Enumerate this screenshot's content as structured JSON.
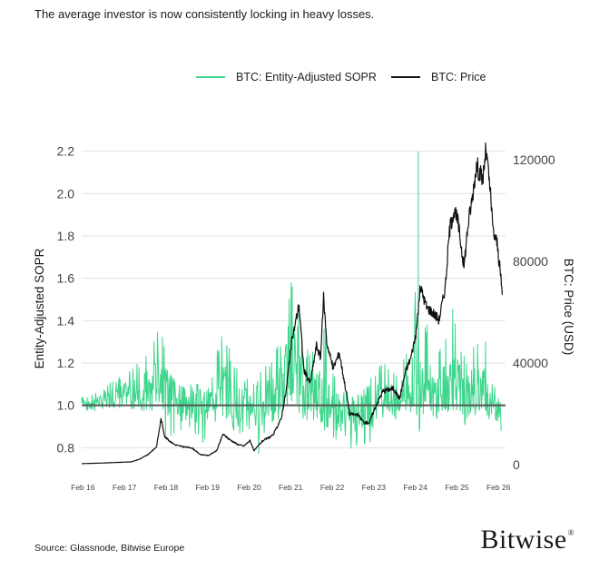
{
  "subtitle": "The average investor is now consistently locking in heavy losses.",
  "source": "Source: Glassnode, Bitwise Europe",
  "brand": "Bitwise",
  "brand_mark": "®",
  "colors": {
    "sopr": "#3dd68c",
    "price": "#111111",
    "baseline": "#555555",
    "grid": "#e2e2e2",
    "axis_text": "#444444"
  },
  "chart_data": {
    "type": "line",
    "title": "",
    "x_ticks": [
      "Feb 16",
      "Feb 17",
      "Feb 18",
      "Feb 19",
      "Feb 20",
      "Feb 21",
      "Feb 22",
      "Feb 23",
      "Feb 24",
      "Feb 25",
      "Feb 26"
    ],
    "xlim": [
      2016.05,
      2026.25
    ],
    "y_left": {
      "label": "Entity-Adjusted SOPR",
      "ticks": [
        "0.8",
        "1.0",
        "1.2",
        "1.4",
        "1.6",
        "1.8",
        "2.0",
        "2.2"
      ],
      "ylim": [
        0.72,
        2.22
      ]
    },
    "y_right": {
      "label": "BTC: Price (USD)",
      "ticks": [
        "0",
        "40000",
        "80000",
        "120000"
      ],
      "ylim": [
        0,
        125000
      ]
    },
    "reference_line": {
      "axis": "left",
      "value": 1.0
    },
    "series": [
      {
        "name": "BTC: Entity-Adjusted SOPR",
        "axis": "left",
        "style": "band",
        "points": [
          [
            2016.05,
            1.01,
            0.98,
            1.04
          ],
          [
            2016.3,
            1.02,
            0.97,
            1.06
          ],
          [
            2016.55,
            1.02,
            0.98,
            1.07
          ],
          [
            2016.8,
            1.04,
            0.99,
            1.12
          ],
          [
            2017.0,
            1.05,
            0.98,
            1.14
          ],
          [
            2017.25,
            1.06,
            0.97,
            1.18
          ],
          [
            2017.5,
            1.07,
            0.95,
            1.22
          ],
          [
            2017.75,
            1.09,
            0.96,
            1.28
          ],
          [
            2017.95,
            1.14,
            0.98,
            1.43
          ],
          [
            2018.1,
            1.05,
            0.82,
            1.18
          ],
          [
            2018.3,
            1.0,
            0.86,
            1.12
          ],
          [
            2018.5,
            0.99,
            0.85,
            1.1
          ],
          [
            2018.75,
            1.0,
            0.88,
            1.12
          ],
          [
            2018.95,
            0.99,
            0.8,
            1.08
          ],
          [
            2019.15,
            1.02,
            0.9,
            1.12
          ],
          [
            2019.35,
            1.08,
            0.93,
            1.3
          ],
          [
            2019.5,
            1.08,
            0.9,
            1.37
          ],
          [
            2019.7,
            1.02,
            0.85,
            1.2
          ],
          [
            2019.95,
            1.0,
            0.87,
            1.15
          ],
          [
            2020.15,
            1.01,
            0.88,
            1.12
          ],
          [
            2020.25,
            0.98,
            0.73,
            1.15
          ],
          [
            2020.5,
            1.02,
            0.9,
            1.2
          ],
          [
            2020.75,
            1.05,
            0.92,
            1.32
          ],
          [
            2020.95,
            1.15,
            0.96,
            1.38
          ],
          [
            2021.0,
            1.22,
            0.96,
            1.52
          ],
          [
            2021.1,
            1.25,
            0.98,
            1.61
          ],
          [
            2021.25,
            1.15,
            0.92,
            1.45
          ],
          [
            2021.45,
            1.05,
            0.9,
            1.25
          ],
          [
            2021.7,
            1.08,
            0.93,
            1.35
          ],
          [
            2021.9,
            1.05,
            0.85,
            1.4
          ],
          [
            2022.1,
            0.98,
            0.85,
            1.15
          ],
          [
            2022.3,
            0.97,
            0.8,
            1.12
          ],
          [
            2022.5,
            0.92,
            0.76,
            1.05
          ],
          [
            2022.75,
            0.95,
            0.82,
            1.05
          ],
          [
            2022.95,
            0.98,
            0.8,
            1.12
          ],
          [
            2023.15,
            1.02,
            0.9,
            1.18
          ],
          [
            2023.4,
            1.03,
            0.93,
            1.2
          ],
          [
            2023.65,
            1.02,
            0.93,
            1.15
          ],
          [
            2023.9,
            1.08,
            0.95,
            1.3
          ],
          [
            2024.05,
            1.12,
            0.98,
            1.4
          ],
          [
            2024.15,
            1.2,
            1.0,
            2.2
          ],
          [
            2024.3,
            1.15,
            0.95,
            1.45
          ],
          [
            2024.5,
            1.05,
            0.92,
            1.25
          ],
          [
            2024.75,
            1.08,
            0.95,
            1.3
          ],
          [
            2024.95,
            1.12,
            0.98,
            1.48
          ],
          [
            2025.1,
            1.1,
            0.95,
            1.38
          ],
          [
            2025.3,
            1.03,
            0.9,
            1.22
          ],
          [
            2025.5,
            1.08,
            0.95,
            1.3
          ],
          [
            2025.75,
            1.08,
            0.97,
            1.33
          ],
          [
            2025.9,
            1.03,
            0.92,
            1.2
          ],
          [
            2026.05,
            1.0,
            0.93,
            1.05
          ],
          [
            2026.15,
            0.92,
            0.87,
            1.0
          ]
        ]
      },
      {
        "name": "BTC: Price",
        "axis": "right",
        "style": "line",
        "points": [
          [
            2016.05,
            400
          ],
          [
            2016.5,
            600
          ],
          [
            2016.95,
            900
          ],
          [
            2017.25,
            1100
          ],
          [
            2017.45,
            2200
          ],
          [
            2017.65,
            4000
          ],
          [
            2017.85,
            7000
          ],
          [
            2017.96,
            18000
          ],
          [
            2018.05,
            11000
          ],
          [
            2018.15,
            9500
          ],
          [
            2018.3,
            7800
          ],
          [
            2018.5,
            7000
          ],
          [
            2018.7,
            6600
          ],
          [
            2018.9,
            4000
          ],
          [
            2019.1,
            3600
          ],
          [
            2019.3,
            5500
          ],
          [
            2019.45,
            12000
          ],
          [
            2019.6,
            10000
          ],
          [
            2019.8,
            8000
          ],
          [
            2019.95,
            7300
          ],
          [
            2020.1,
            9500
          ],
          [
            2020.2,
            5500
          ],
          [
            2020.4,
            9300
          ],
          [
            2020.65,
            11500
          ],
          [
            2020.85,
            18000
          ],
          [
            2020.97,
            29000
          ],
          [
            2021.1,
            48000
          ],
          [
            2021.28,
            63000
          ],
          [
            2021.4,
            37000
          ],
          [
            2021.55,
            32000
          ],
          [
            2021.7,
            47000
          ],
          [
            2021.8,
            42000
          ],
          [
            2021.87,
            66000
          ],
          [
            2021.95,
            48000
          ],
          [
            2022.1,
            38000
          ],
          [
            2022.25,
            44000
          ],
          [
            2022.4,
            30000
          ],
          [
            2022.5,
            20000
          ],
          [
            2022.7,
            19500
          ],
          [
            2022.85,
            16500
          ],
          [
            2022.97,
            16500
          ],
          [
            2023.15,
            24000
          ],
          [
            2023.3,
            29000
          ],
          [
            2023.55,
            30000
          ],
          [
            2023.7,
            26000
          ],
          [
            2023.85,
            37000
          ],
          [
            2023.97,
            42000
          ],
          [
            2024.1,
            52000
          ],
          [
            2024.2,
            70000
          ],
          [
            2024.35,
            62000
          ],
          [
            2024.5,
            60000
          ],
          [
            2024.65,
            57000
          ],
          [
            2024.8,
            70000
          ],
          [
            2024.9,
            92000
          ],
          [
            2025.0,
            100000
          ],
          [
            2025.1,
            96000
          ],
          [
            2025.25,
            78000
          ],
          [
            2025.35,
            95000
          ],
          [
            2025.45,
            105000
          ],
          [
            2025.55,
            118000
          ],
          [
            2025.7,
            112000
          ],
          [
            2025.78,
            124000
          ],
          [
            2025.88,
            108000
          ],
          [
            2025.95,
            92000
          ],
          [
            2026.05,
            87000
          ],
          [
            2026.12,
            76000
          ],
          [
            2026.18,
            66000
          ]
        ]
      }
    ],
    "legend_position": "top-center",
    "grid": true
  }
}
